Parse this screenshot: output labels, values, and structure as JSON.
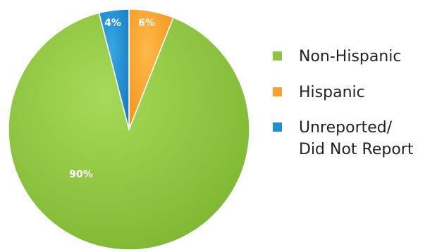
{
  "chart_data": {
    "type": "pie",
    "categories": [
      "Non-Hispanic",
      "Hispanic",
      "Unreported/ Did Not Report"
    ],
    "values": [
      90,
      6,
      4
    ],
    "value_labels": [
      "90%",
      "6%",
      "4%"
    ],
    "colors": [
      "#8DC63F",
      "#F7A12B",
      "#1B8FD1"
    ],
    "legend": {
      "placement": "right",
      "items": [
        {
          "lines": [
            "Non-Hispanic"
          ]
        },
        {
          "lines": [
            "Hispanic"
          ]
        },
        {
          "lines": [
            "Unreported/",
            "Did Not Report"
          ]
        }
      ]
    }
  }
}
